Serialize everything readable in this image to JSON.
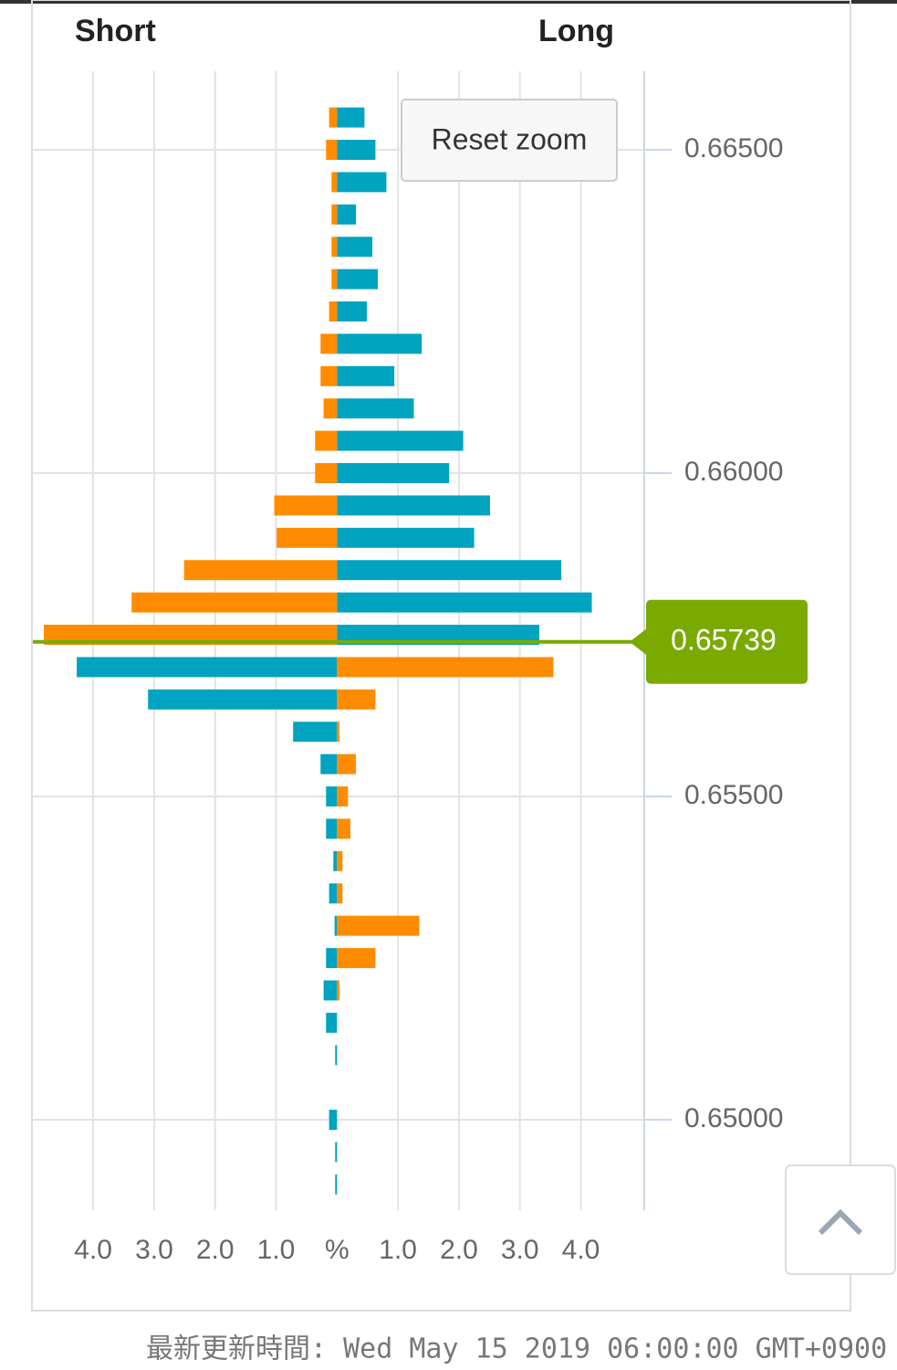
{
  "chart_data": {
    "type": "butterfly-bar",
    "series": [
      {
        "name": "Short",
        "values": [
          0.13,
          0.18,
          0.09,
          0.09,
          0.09,
          0.09,
          0.13,
          0.27,
          0.27,
          0.22,
          0.36,
          0.36,
          1.03,
          0.99,
          2.51,
          3.37,
          4.81,
          4.27,
          3.1,
          0.72,
          0.27,
          0.18,
          0.18,
          0.06,
          0.13,
          0.04,
          0.18,
          0.22,
          0.18,
          0.03,
          0,
          0.13,
          0.03,
          0.03
        ]
      },
      {
        "name": "Long",
        "values": [
          0.45,
          0.63,
          0.81,
          0.31,
          0.58,
          0.67,
          0.49,
          1.39,
          0.94,
          1.26,
          2.07,
          1.84,
          2.51,
          2.25,
          3.68,
          4.18,
          3.32,
          3.55,
          0.63,
          0.04,
          0.31,
          0.18,
          0.22,
          0.09,
          0.09,
          1.35,
          0.63,
          0.04,
          0,
          0,
          0,
          0,
          0,
          0
        ]
      }
    ],
    "prices": [
      0.6655,
      0.665,
      0.6645,
      0.664,
      0.6635,
      0.663,
      0.6625,
      0.662,
      0.6615,
      0.661,
      0.6605,
      0.66,
      0.6595,
      0.659,
      0.6585,
      0.658,
      0.6575,
      0.657,
      0.6565,
      0.656,
      0.6555,
      0.655,
      0.6545,
      0.654,
      0.6535,
      0.653,
      0.6525,
      0.652,
      0.6515,
      0.651,
      0.6505,
      0.65,
      0.6495,
      0.649
    ],
    "above_current_colors": [
      "#ff8c00",
      "#00a3c0"
    ],
    "below_current_colors": [
      "#00a3c0",
      "#ff8c00"
    ],
    "current_price": {
      "value": 0.65739,
      "label": "0.65739",
      "color": "#7aaa00"
    },
    "xlim": [
      -4.99,
      5.04
    ],
    "xticks": [
      {
        "value": -4,
        "label": "4.0"
      },
      {
        "value": -3,
        "label": "3.0"
      },
      {
        "value": -2,
        "label": "2.0"
      },
      {
        "value": -1,
        "label": "1.0"
      },
      {
        "value": 0,
        "label": "%"
      },
      {
        "value": 1,
        "label": "1.0"
      },
      {
        "value": 2,
        "label": "2.0"
      },
      {
        "value": 3,
        "label": "3.0"
      },
      {
        "value": 4,
        "label": "4.0"
      }
    ],
    "ylim": [
      0.648602,
      0.666215
    ],
    "yticks": [
      {
        "value": 0.665,
        "label": "0.66500"
      },
      {
        "value": 0.66,
        "label": "0.66000"
      },
      {
        "value": 0.655,
        "label": "0.65500"
      },
      {
        "value": 0.65,
        "label": "0.65000"
      }
    ],
    "grid": true,
    "reset_button": "Reset zoom",
    "footer": "最新更新時間: Wed May 15 2019 06:00:00 GMT+0900"
  }
}
